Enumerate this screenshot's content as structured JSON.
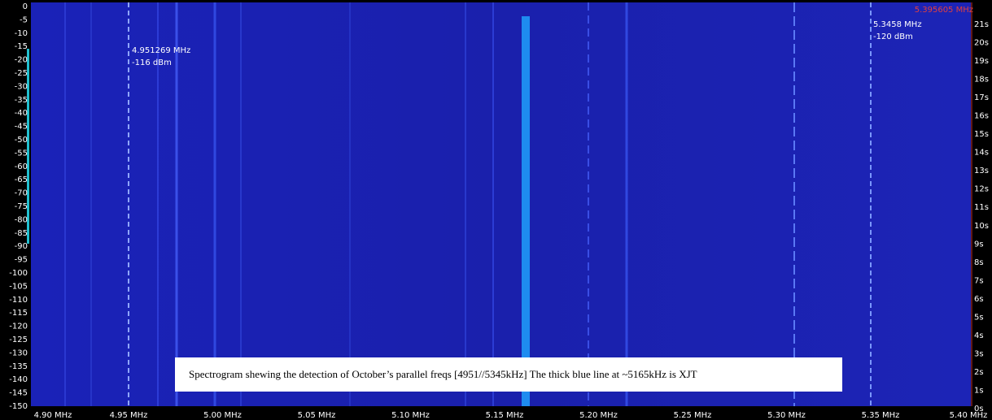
{
  "top_frequency": "5.395605 MHz",
  "level_labels": [
    "0",
    "-5",
    "-10",
    "-15",
    "-20",
    "-25",
    "-30",
    "-35",
    "-40",
    "-45",
    "-50",
    "-55",
    "-60",
    "-65",
    "-70",
    "-75",
    "-80",
    "-85",
    "-90",
    "-95",
    "-100",
    "-105",
    "-110",
    "-115",
    "-120",
    "-125",
    "-130",
    "-135",
    "-140",
    "-145",
    "-150"
  ],
  "time_labels": [
    "21s",
    "20s",
    "19s",
    "18s",
    "17s",
    "16s",
    "15s",
    "14s",
    "13s",
    "12s",
    "11s",
    "10s",
    "9s",
    "8s",
    "7s",
    "6s",
    "5s",
    "4s",
    "3s",
    "2s",
    "1s",
    "0s"
  ],
  "frequency_labels": [
    "4.90 MHz",
    "4.95 MHz",
    "5.00 MHz",
    "5.05 MHz",
    "5.10 MHz",
    "5.15 MHz",
    "5.20 MHz",
    "5.25 MHz",
    "5.30 MHz",
    "5.35 MHz",
    "5.40 MHz"
  ],
  "markers": [
    {
      "frequency": "4.951269 MHz",
      "level": "-116 dBm"
    },
    {
      "frequency": "5.3458 MHz",
      "level": "-120 dBm"
    }
  ],
  "caption": "Spectrogram shewing the detection of October’s parallel freqs [4951//5345kHz] The thick blue line at ~5165kHz is XJT"
}
